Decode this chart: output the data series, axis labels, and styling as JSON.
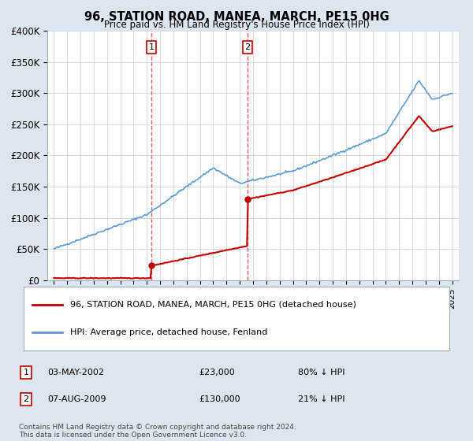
{
  "title": "96, STATION ROAD, MANEA, MARCH, PE15 0HG",
  "subtitle": "Price paid vs. HM Land Registry's House Price Index (HPI)",
  "ylabel_values": [
    "£0",
    "£50K",
    "£100K",
    "£150K",
    "£200K",
    "£250K",
    "£300K",
    "£350K",
    "£400K"
  ],
  "ylim": [
    0,
    400000
  ],
  "xlim_start": 1994.5,
  "xlim_end": 2025.5,
  "transaction1": {
    "date_num": 2002.34,
    "price": 23000,
    "label": "1",
    "date_str": "03-MAY-2002",
    "price_str": "£23,000",
    "pct": "80% ↓ HPI"
  },
  "transaction2": {
    "date_num": 2009.59,
    "price": 130000,
    "label": "2",
    "date_str": "07-AUG-2009",
    "price_str": "£130,000",
    "pct": "21% ↓ HPI"
  },
  "hpi_color": "#5b9bd5",
  "price_color": "#c00000",
  "marker_color": "#c00000",
  "dashed_line_color": "#e06060",
  "background_color": "#dce6f1",
  "plot_bg_color": "#ffffff",
  "grid_color": "#cccccc",
  "legend_label_red": "96, STATION ROAD, MANEA, MARCH, PE15 0HG (detached house)",
  "legend_label_blue": "HPI: Average price, detached house, Fenland",
  "annotation_text": "Contains HM Land Registry data © Crown copyright and database right 2024.\nThis data is licensed under the Open Government Licence v3.0.",
  "transaction_table": [
    {
      "num": "1",
      "date": "03-MAY-2002",
      "price": "£23,000",
      "pct": "80% ↓ HPI"
    },
    {
      "num": "2",
      "date": "07-AUG-2009",
      "price": "£130,000",
      "pct": "21% ↓ HPI"
    }
  ]
}
